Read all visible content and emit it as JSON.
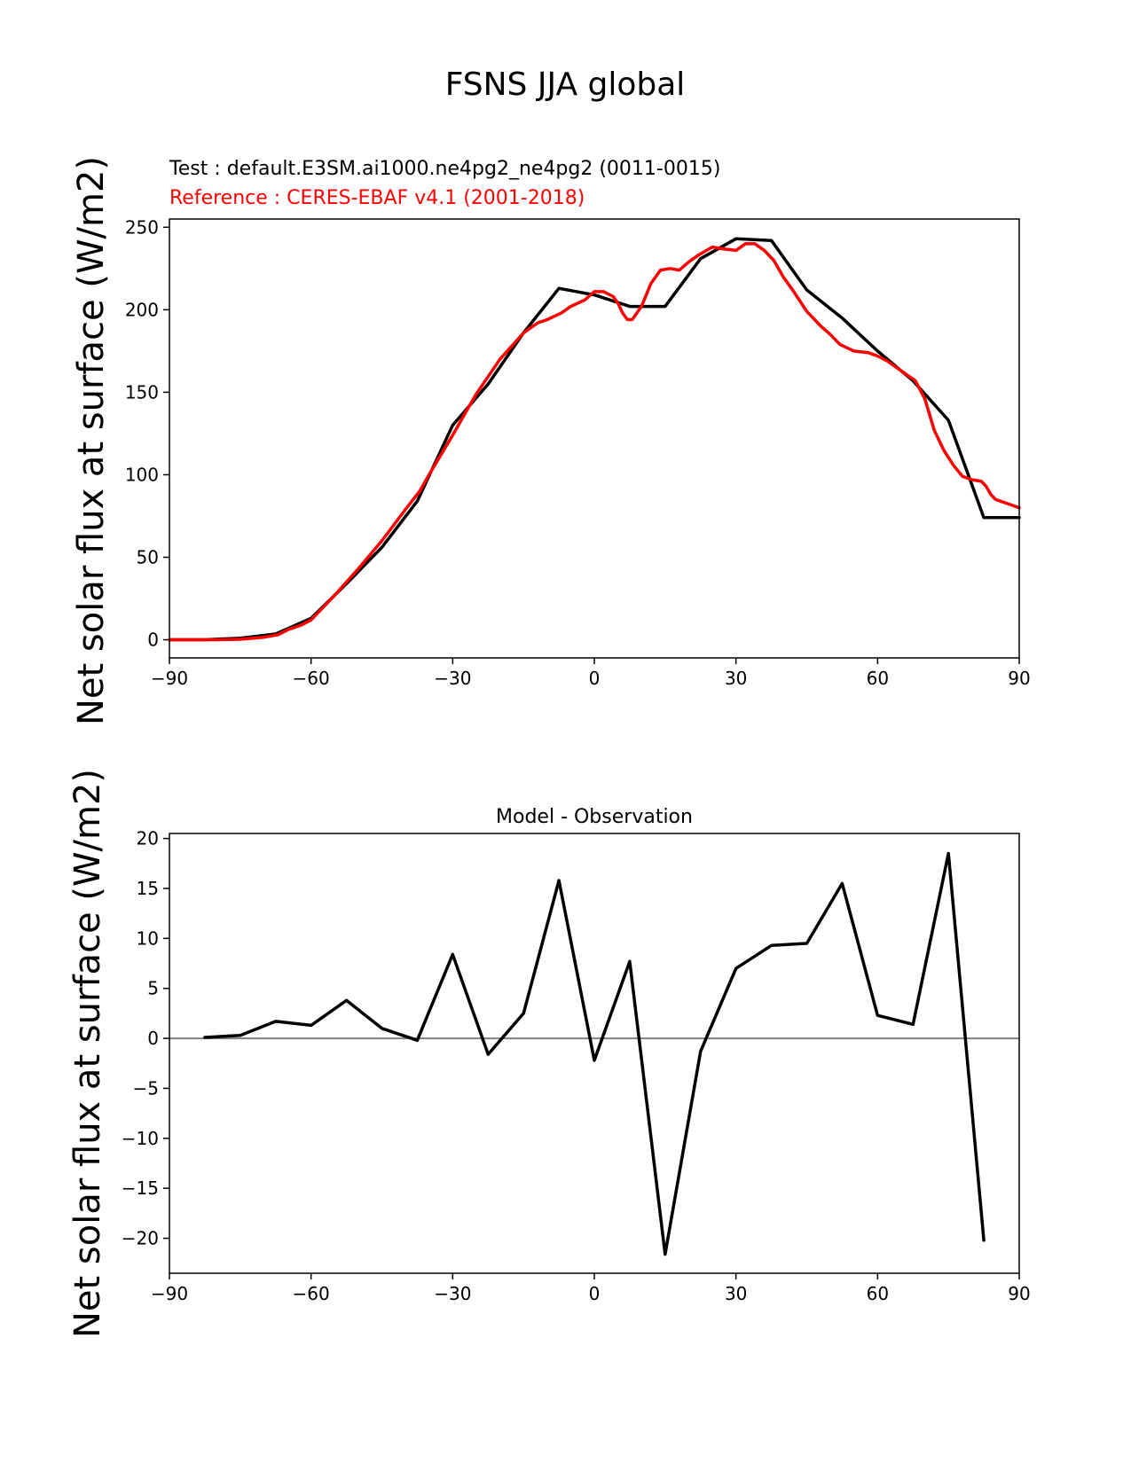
{
  "figure": {
    "suptitle": "FSNS JJA global"
  },
  "chart_data": [
    {
      "type": "line",
      "test_label": "Test : default.E3SM.ai1000.ne4pg2_ne4pg2 (0011-0015)",
      "reference_label": "Reference : CERES-EBAF v4.1 (2001-2018)",
      "test_color": "#000000",
      "reference_color": "#ff0000",
      "ylabel": "Net solar flux at surface (W/m2)",
      "xlim": [
        -90,
        90
      ],
      "ylim": [
        -11,
        255
      ],
      "xticks": [
        -90,
        -60,
        -30,
        0,
        30,
        60,
        90
      ],
      "xtick_labels": [
        "−90",
        "−60",
        "−30",
        "0",
        "30",
        "60",
        "90"
      ],
      "yticks": [
        0,
        50,
        100,
        150,
        200,
        250
      ],
      "ytick_labels": [
        "0",
        "50",
        "100",
        "150",
        "200",
        "250"
      ],
      "grid": false,
      "series": [
        {
          "role": "test",
          "x": [
            -90,
            -82.5,
            -75,
            -67.5,
            -60,
            -52.5,
            -45,
            -37.5,
            -30,
            -22.5,
            -15,
            -7.5,
            0,
            7.5,
            15,
            22.5,
            30,
            37.5,
            45,
            52.5,
            60,
            67.5,
            75,
            82.5,
            90
          ],
          "y": [
            0,
            0,
            1,
            3.5,
            13,
            34,
            56,
            84,
            130,
            155,
            186,
            213,
            209,
            202,
            202,
            231,
            243,
            242,
            212,
            195,
            175,
            157,
            133,
            74,
            74
          ]
        },
        {
          "role": "reference",
          "x": [
            -90,
            -80,
            -75,
            -70,
            -67,
            -65,
            -62,
            -60,
            -55,
            -50,
            -45,
            -40,
            -37,
            -35,
            -30,
            -25,
            -20,
            -15,
            -12,
            -10,
            -7,
            -5,
            -2,
            0,
            2,
            4,
            5,
            6,
            7,
            8,
            10,
            12,
            14,
            16,
            18,
            20,
            22,
            25,
            27,
            30,
            32,
            34,
            36,
            38,
            40,
            42,
            45,
            48,
            50,
            52,
            55,
            58,
            60,
            62,
            65,
            68,
            70,
            72,
            74,
            76,
            78,
            80,
            82,
            83,
            84,
            85,
            86,
            88,
            90
          ],
          "y": [
            0,
            0,
            0.3,
            1.5,
            3,
            6,
            9,
            12,
            27,
            43,
            60,
            79,
            90,
            100,
            124,
            149,
            170,
            186,
            192,
            194,
            198,
            202,
            206,
            211,
            211,
            208,
            204,
            198,
            194,
            194,
            202,
            216,
            224,
            225,
            224,
            229,
            233,
            238,
            237,
            236,
            240,
            240,
            236,
            230,
            220,
            212,
            199,
            190,
            185,
            179,
            175,
            174,
            172,
            169,
            163,
            157,
            146,
            127,
            115,
            106,
            99,
            97,
            96,
            93,
            88,
            85,
            84,
            82,
            80
          ]
        }
      ]
    },
    {
      "type": "line",
      "title": "Model - Observation",
      "ylabel": "Net solar flux at surface (W/m2)",
      "xlim": [
        -90,
        90
      ],
      "ylim": [
        -23.5,
        20.5
      ],
      "xticks": [
        -90,
        -60,
        -30,
        0,
        30,
        60,
        90
      ],
      "xtick_labels": [
        "−90",
        "−60",
        "−30",
        "0",
        "30",
        "60",
        "90"
      ],
      "yticks": [
        -20,
        -15,
        -10,
        -5,
        0,
        5,
        10,
        15,
        20
      ],
      "ytick_labels": [
        "−20",
        "−15",
        "−10",
        "−5",
        "0",
        "5",
        "10",
        "15",
        "20"
      ],
      "grid": false,
      "zero_line_color": "#808080",
      "series": [
        {
          "color": "#000000",
          "x": [
            -82.5,
            -75,
            -67.5,
            -60,
            -52.5,
            -45,
            -37.5,
            -30,
            -22.5,
            -15,
            -7.5,
            0,
            7.5,
            15,
            22.5,
            30,
            37.5,
            45,
            52.5,
            60,
            67.5,
            75,
            82.5
          ],
          "y": [
            0.1,
            0.3,
            1.7,
            1.3,
            3.8,
            1.0,
            -0.2,
            8.4,
            -1.6,
            2.5,
            15.8,
            -2.2,
            7.7,
            -21.6,
            -1.3,
            7.0,
            9.3,
            9.5,
            15.5,
            2.3,
            1.4,
            18.5,
            -20.2
          ]
        }
      ]
    }
  ]
}
